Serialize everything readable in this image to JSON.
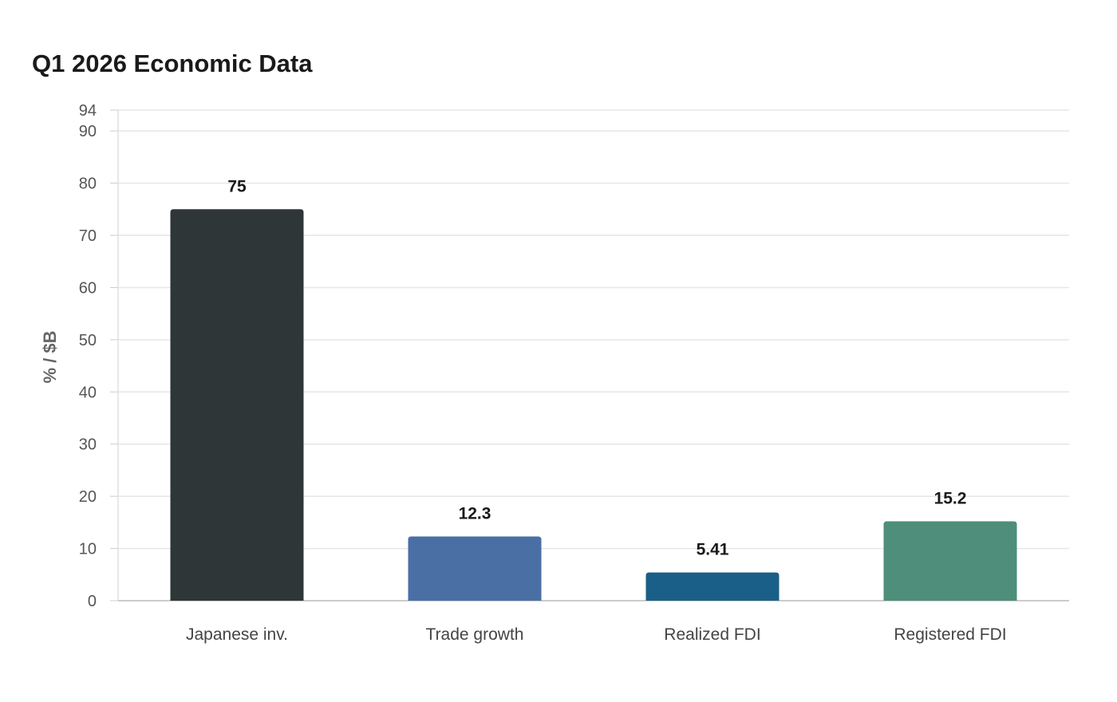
{
  "chart_data": {
    "type": "bar",
    "title": "Q1 2026 Economic Data",
    "xlabel": "",
    "ylabel": "% / $B",
    "categories": [
      "Japanese inv.",
      "Trade growth",
      "Realized FDI",
      "Registered FDI"
    ],
    "values": [
      75,
      12.3,
      5.41,
      15.2
    ],
    "data_labels": [
      "75",
      "12.3",
      "5.41",
      "15.2"
    ],
    "colors": [
      "#2e3637",
      "#4a6fa5",
      "#1a5f87",
      "#4e8e7a"
    ],
    "ylim": [
      0,
      94
    ],
    "yticks": [
      0,
      10,
      20,
      30,
      40,
      50,
      60,
      70,
      80,
      90,
      94
    ],
    "grid": true,
    "legend": "none"
  },
  "style": {
    "grid_color": "#e6e6e6",
    "axis_color": "#cccccc"
  }
}
